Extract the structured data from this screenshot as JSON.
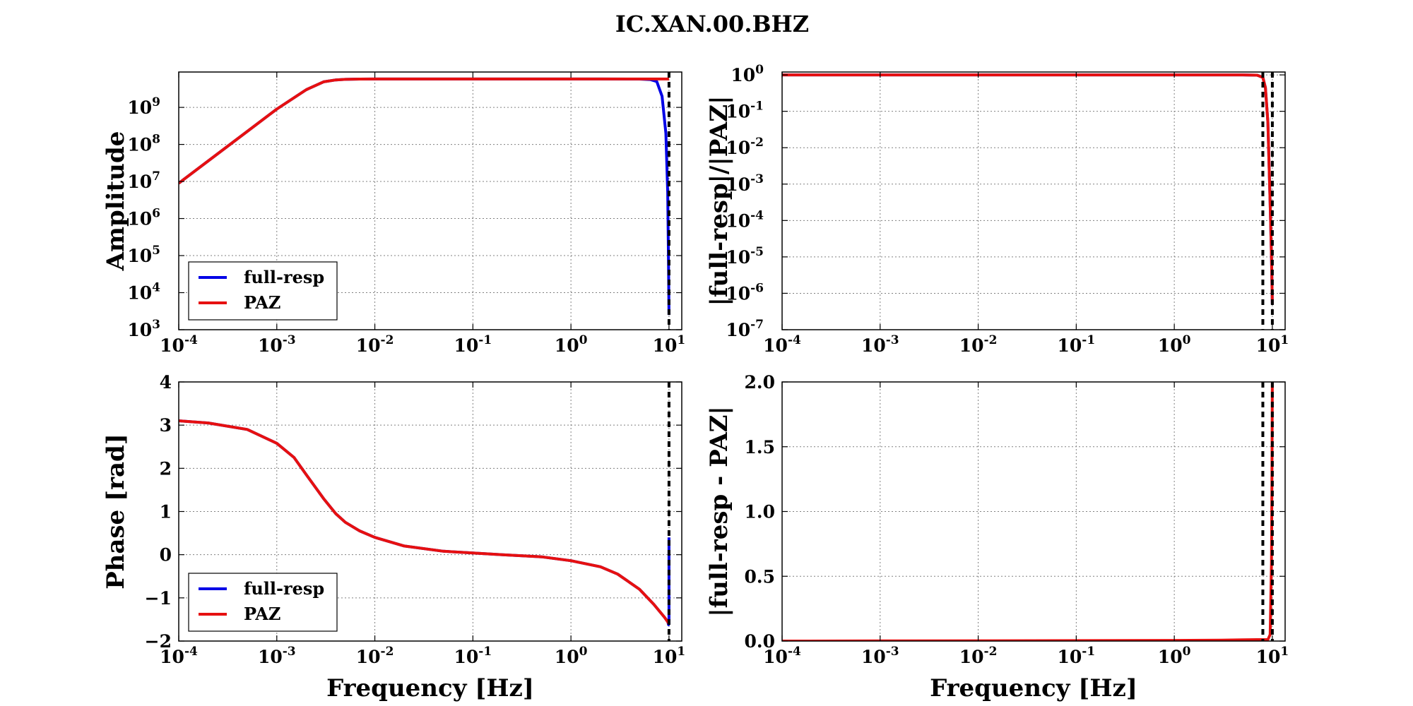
{
  "figure_title": "IC.XAN.00.BHZ",
  "colors": {
    "full_resp": "#0000e6",
    "paz": "#e61010",
    "cutoff_line": "#000000"
  },
  "chart_data": [
    {
      "id": "amplitude",
      "type": "line",
      "title": "",
      "xlabel": "",
      "ylabel": "Amplitude",
      "xscale": "log",
      "yscale": "log",
      "xlim": [
        0.0001,
        13.5
      ],
      "ylim": [
        1000,
        9000000000
      ],
      "x_ticks": [
        0.0001,
        0.001,
        0.01,
        0.1,
        1,
        10
      ],
      "y_ticks": [
        1000,
        10000,
        100000,
        1000000,
        10000000,
        100000000,
        1000000000
      ],
      "grid": true,
      "legend": {
        "placement": "lower-left",
        "entries": [
          "full-resp",
          "PAZ"
        ]
      },
      "vlines": [
        10
      ],
      "series": [
        {
          "name": "full-resp",
          "color": "#0000e6",
          "x": [
            0.0001,
            0.0002,
            0.0005,
            0.001,
            0.002,
            0.003,
            0.004,
            0.005,
            0.007,
            0.01,
            0.02,
            0.05,
            0.1,
            0.5,
            1,
            2,
            5,
            6.5,
            7.5,
            8.5,
            9.3,
            9.7,
            9.9,
            10
          ],
          "y": [
            9000000,
            36000000,
            225000000,
            900000000,
            3000000000,
            4900000000,
            5500000000,
            5700000000,
            5800000000,
            5830000000,
            5840000000,
            5840000000,
            5840000000,
            5840000000,
            5840000000,
            5840000000,
            5800000000,
            5600000000,
            5000000000,
            2000000000,
            200000000,
            5000000,
            50000,
            2500
          ]
        },
        {
          "name": "PAZ",
          "color": "#e61010",
          "x": [
            0.0001,
            0.0002,
            0.0005,
            0.001,
            0.002,
            0.003,
            0.004,
            0.005,
            0.007,
            0.01,
            0.02,
            0.05,
            0.1,
            0.5,
            1,
            2,
            5,
            7,
            10
          ],
          "y": [
            9000000,
            36000000,
            225000000,
            900000000,
            3000000000,
            4900000000,
            5500000000,
            5700000000,
            5800000000,
            5830000000,
            5840000000,
            5840000000,
            5840000000,
            5840000000,
            5840000000,
            5840000000,
            5840000000,
            5840000000,
            5830000000
          ]
        }
      ]
    },
    {
      "id": "amplitude-ratio",
      "type": "line",
      "title": "",
      "xlabel": "",
      "ylabel": "|full-resp|/|PAZ|",
      "xscale": "log",
      "yscale": "log",
      "xlim": [
        0.0001,
        13.5
      ],
      "ylim": [
        1e-07,
        1.2
      ],
      "x_ticks": [
        0.0001,
        0.001,
        0.01,
        0.1,
        1,
        10
      ],
      "y_ticks": [
        1e-07,
        1e-06,
        1e-05,
        0.0001,
        0.001,
        0.01,
        0.1,
        1
      ],
      "grid": true,
      "legend": null,
      "vlines": [
        8,
        10
      ],
      "series": [
        {
          "name": "",
          "color": "#0000e6",
          "x": [
            0.0001,
            0.01,
            1,
            5,
            7,
            8,
            8.5,
            9,
            9.5,
            9.8,
            10
          ],
          "y": [
            1,
            1,
            1,
            1,
            0.98,
            0.85,
            0.45,
            0.05,
            0.0003,
            1e-05,
            5e-07
          ]
        },
        {
          "name": "",
          "color": "#e61010",
          "x": [
            0.0001,
            0.01,
            1,
            5,
            7,
            8,
            8.5,
            9,
            9.5,
            9.8,
            10
          ],
          "y": [
            1,
            1,
            1,
            1,
            0.98,
            0.85,
            0.45,
            0.05,
            0.0003,
            1e-05,
            5e-07
          ]
        }
      ]
    },
    {
      "id": "phase",
      "type": "line",
      "title": "",
      "xlabel": "Frequency [Hz]",
      "ylabel": "Phase [rad]",
      "xscale": "log",
      "yscale": "linear",
      "xlim": [
        0.0001,
        13.5
      ],
      "ylim": [
        -2,
        4
      ],
      "x_ticks": [
        0.0001,
        0.001,
        0.01,
        0.1,
        1,
        10
      ],
      "y_ticks": [
        -2,
        -1,
        0,
        1,
        2,
        3,
        4
      ],
      "grid": true,
      "legend": {
        "placement": "lower-left",
        "entries": [
          "full-resp",
          "PAZ"
        ]
      },
      "vlines": [
        10
      ],
      "series": [
        {
          "name": "full-resp",
          "color": "#0000e6",
          "x": [
            0.0001,
            0.0002,
            0.0005,
            0.001,
            0.0015,
            0.002,
            0.003,
            0.004,
            0.005,
            0.007,
            0.01,
            0.02,
            0.05,
            0.1,
            0.2,
            0.5,
            1,
            2,
            3,
            5,
            7,
            9,
            9.7,
            9.9,
            10,
            10,
            10
          ],
          "y": [
            3.1,
            3.05,
            2.9,
            2.58,
            2.25,
            1.85,
            1.3,
            0.95,
            0.75,
            0.55,
            0.4,
            0.2,
            0.08,
            0.04,
            0.0,
            -0.05,
            -0.14,
            -0.28,
            -0.45,
            -0.8,
            -1.15,
            -1.45,
            -1.55,
            -1.62,
            -1.6,
            0.0,
            0.4
          ]
        },
        {
          "name": "PAZ",
          "color": "#e61010",
          "x": [
            0.0001,
            0.0002,
            0.0005,
            0.001,
            0.0015,
            0.002,
            0.003,
            0.004,
            0.005,
            0.007,
            0.01,
            0.02,
            0.05,
            0.1,
            0.2,
            0.5,
            1,
            2,
            3,
            5,
            7,
            9,
            10
          ],
          "y": [
            3.1,
            3.05,
            2.9,
            2.58,
            2.25,
            1.85,
            1.3,
            0.95,
            0.75,
            0.55,
            0.4,
            0.2,
            0.08,
            0.04,
            0.0,
            -0.05,
            -0.14,
            -0.28,
            -0.45,
            -0.8,
            -1.15,
            -1.45,
            -1.6
          ]
        }
      ]
    },
    {
      "id": "amplitude-diff",
      "type": "line",
      "title": "",
      "xlabel": "Frequency [Hz]",
      "ylabel": "|full-resp - PAZ|",
      "xscale": "log",
      "yscale": "linear",
      "xlim": [
        0.0001,
        13.5
      ],
      "ylim": [
        0,
        2
      ],
      "x_ticks": [
        0.0001,
        0.001,
        0.01,
        0.1,
        1,
        10
      ],
      "y_ticks": [
        0,
        0.5,
        1,
        1.5,
        2
      ],
      "y_tick_labels": [
        "0.0",
        "0.5",
        "1.0",
        "1.5",
        "2.0"
      ],
      "grid": true,
      "legend": null,
      "vlines": [
        8,
        10
      ],
      "series": [
        {
          "name": "",
          "color": "#e61010",
          "x": [
            0.0001,
            0.001,
            0.01,
            0.1,
            1,
            3,
            5,
            7,
            8,
            9,
            9.5,
            9.8,
            9.9,
            10
          ],
          "y": [
            0,
            0.001,
            0.002,
            0.003,
            0.005,
            0.007,
            0.009,
            0.011,
            0.011,
            0.011,
            0.05,
            0.6,
            1.2,
            2.0
          ]
        }
      ]
    }
  ]
}
